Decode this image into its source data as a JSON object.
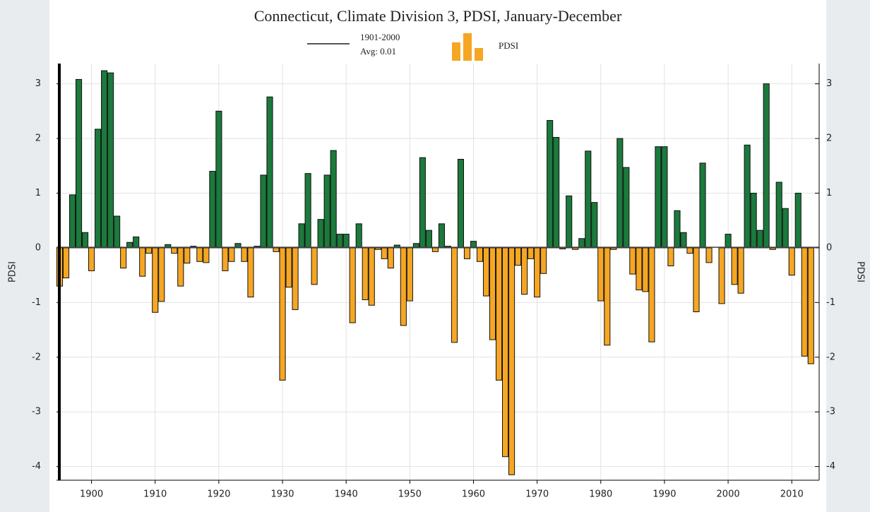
{
  "chart_data": {
    "type": "bar",
    "title": "Connecticut, Climate Division 3, PDSI, January-December",
    "average_period": "1901-2000",
    "average_label": "Avg: 0.01",
    "average": 0.01,
    "ylabel": "PDSI",
    "series": [
      {
        "name": "PDSI",
        "positive_color": "#1b7a3c",
        "negative_color": "#f5a623",
        "values": [
          -0.7,
          -0.55,
          0.97,
          3.08,
          0.28,
          -0.42,
          2.17,
          3.24,
          3.2,
          0.58,
          -0.37,
          0.1,
          0.2,
          -0.52,
          -0.1,
          -1.18,
          -0.98,
          0.06,
          -0.1,
          -0.7,
          -0.28,
          0.03,
          -0.25,
          -0.27,
          1.4,
          2.5,
          -0.42,
          -0.25,
          0.08,
          -0.25,
          -0.9,
          0.03,
          1.33,
          2.76,
          -0.07,
          -2.42,
          -0.72,
          -1.13,
          0.44,
          1.36,
          -0.67,
          0.52,
          1.33,
          1.78,
          0.25,
          0.25,
          -1.37,
          0.44,
          -0.95,
          -1.05,
          -0.03,
          -0.2,
          -0.37,
          0.05,
          -1.42,
          -0.97,
          0.08,
          1.65,
          0.32,
          -0.07,
          0.44,
          0.03,
          -1.73,
          1.62,
          -0.2,
          0.12,
          -0.25,
          -0.88,
          -1.68,
          -2.42,
          -3.82,
          -4.15,
          -0.32,
          -0.85,
          -0.2,
          -0.9,
          -0.47,
          2.33,
          2.02,
          -0.02,
          0.95,
          -0.03,
          0.17,
          1.77,
          0.83,
          -0.97,
          -1.78,
          -0.03,
          2.0,
          1.47,
          -0.48,
          -0.77,
          -0.8,
          -1.72,
          1.85,
          1.85,
          -0.33,
          0.68,
          0.28,
          -0.1,
          -1.17,
          1.55,
          -0.27,
          0,
          -1.02,
          0.25,
          -0.67,
          -0.83,
          1.88,
          1.0,
          0.32,
          3.0,
          -0.03,
          1.2,
          0.72,
          -0.5,
          1.0,
          -1.98,
          -2.12
        ]
      }
    ],
    "x_start": 1895,
    "xlim": [
      1894.5,
      2014.3
    ],
    "xticks": [
      1900,
      1910,
      1920,
      1930,
      1940,
      1950,
      1960,
      1970,
      1980,
      1990,
      2000,
      2010
    ],
    "ylim": [
      -4.25,
      3.37
    ],
    "yticks": [
      -4,
      -3,
      -2,
      -1,
      0,
      1,
      2,
      3
    ],
    "grid": true
  }
}
